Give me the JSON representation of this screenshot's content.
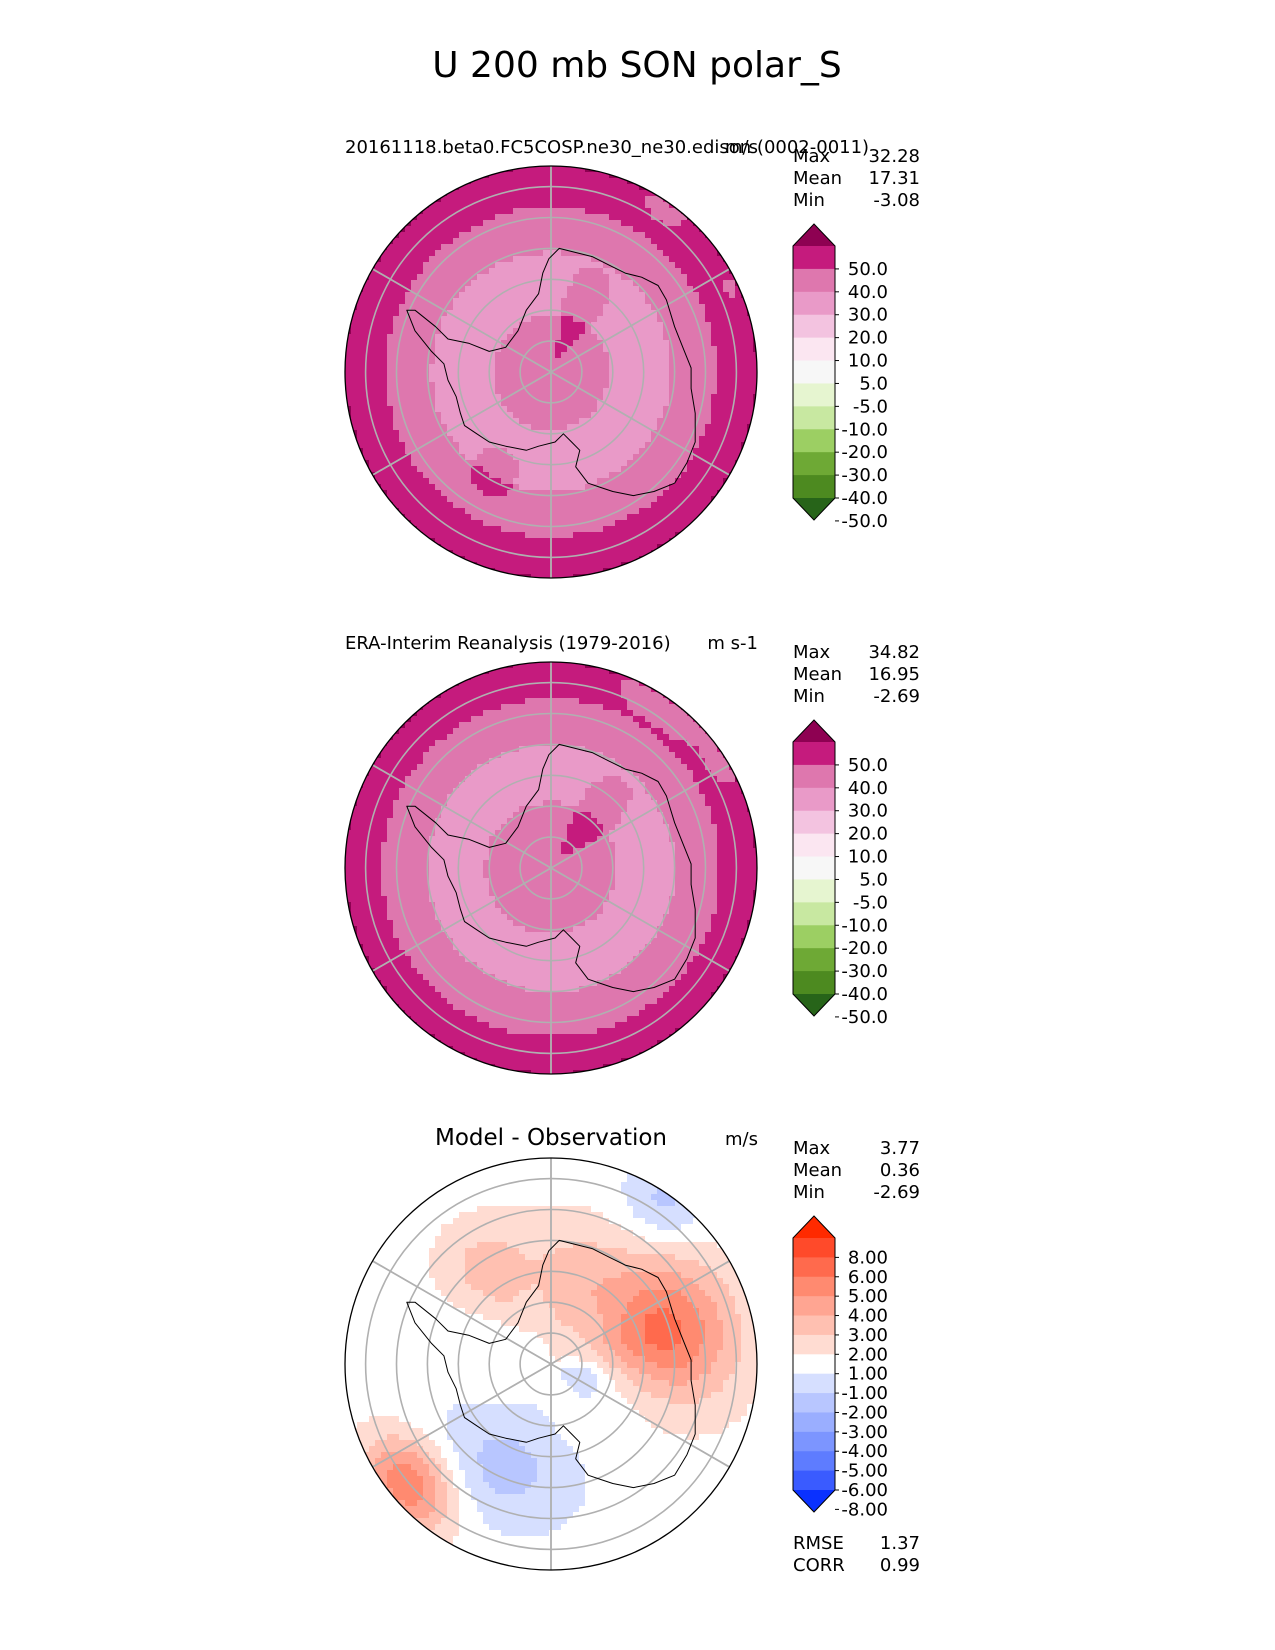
{
  "figure": {
    "title": "U 200 mb SON polar_S"
  },
  "chart_data": [
    {
      "type": "heatmap",
      "panel": "test",
      "title": "20161118.beta0.FC5COSP.ne30_ne30.edison (0002-0011)",
      "units": "m/s",
      "stats": [
        {
          "label": "Max",
          "value": "32.28"
        },
        {
          "label": "Mean",
          "value": "17.31"
        },
        {
          "label": "Min",
          "value": "-3.08"
        }
      ],
      "colorbar": {
        "levels": [
          "50.0",
          "40.0",
          "30.0",
          "20.0",
          "10.0",
          "5.0",
          "-5.0",
          "-10.0",
          "-20.0",
          "-30.0",
          "-40.0",
          "-50.0"
        ],
        "colors": [
          "#8e0152",
          "#c51b7d",
          "#de77ae",
          "#e99ac8",
          "#f3c3e0",
          "#fbe6f1",
          "#f7f7f7",
          "#e6f5d0",
          "#c8e8a1",
          "#9ccf63",
          "#6ea935",
          "#4d8a20",
          "#276419"
        ]
      },
      "field": {
        "center_band": 2,
        "rings": [
          [
            0.28,
            1
          ],
          [
            0.58,
            0
          ],
          [
            0.8,
            -1
          ],
          [
            1.0,
            -2
          ]
        ],
        "anomalies": [
          {
            "az": 25,
            "r": 0.3,
            "sa": 0.28,
            "sr": 0.26,
            "amp": 0.8
          },
          {
            "az": 210,
            "r": 0.55,
            "sa": 0.35,
            "sr": 0.2,
            "amp": 0.6
          },
          {
            "az": 140,
            "r": 0.3,
            "sa": 0.3,
            "sr": 0.2,
            "amp": -0.4
          },
          {
            "az": 35,
            "r": 0.97,
            "sa": 0.12,
            "sr": 0.08,
            "amp": -0.8
          },
          {
            "az": 65,
            "r": 0.96,
            "sa": 0.07,
            "sr": 0.06,
            "amp": -0.6
          }
        ]
      }
    },
    {
      "type": "heatmap",
      "panel": "reference",
      "title": "ERA-Interim Reanalysis (1979-2016)",
      "units": "m s-1",
      "stats": [
        {
          "label": "Max",
          "value": "34.82"
        },
        {
          "label": "Mean",
          "value": "16.95"
        },
        {
          "label": "Min",
          "value": "-2.69"
        }
      ],
      "colorbar": {
        "levels": [
          "50.0",
          "40.0",
          "30.0",
          "20.0",
          "10.0",
          "5.0",
          "-5.0",
          "-10.0",
          "-20.0",
          "-30.0",
          "-40.0",
          "-50.0"
        ],
        "colors": [
          "#8e0152",
          "#c51b7d",
          "#de77ae",
          "#e99ac8",
          "#f3c3e0",
          "#fbe6f1",
          "#f7f7f7",
          "#e6f5d0",
          "#c8e8a1",
          "#9ccf63",
          "#6ea935",
          "#4d8a20",
          "#276419"
        ]
      },
      "field": {
        "center_band": 2,
        "rings": [
          [
            0.32,
            1
          ],
          [
            0.6,
            0
          ],
          [
            0.82,
            -1
          ],
          [
            1.0,
            -2
          ]
        ],
        "anomalies": [
          {
            "az": 40,
            "r": 0.3,
            "sa": 0.3,
            "sr": 0.26,
            "amp": 0.8
          },
          {
            "az": 210,
            "r": 0.5,
            "sa": 0.3,
            "sr": 0.2,
            "amp": 0.5
          },
          {
            "az": 35,
            "r": 0.95,
            "sa": 0.22,
            "sr": 0.1,
            "amp": -1.0
          },
          {
            "az": 60,
            "r": 0.97,
            "sa": 0.1,
            "sr": 0.06,
            "amp": -0.7
          }
        ]
      }
    },
    {
      "type": "heatmap",
      "panel": "difference",
      "title": "Model - Observation",
      "units": "m/s",
      "stats": [
        {
          "label": "Max",
          "value": "3.77"
        },
        {
          "label": "Mean",
          "value": "0.36"
        },
        {
          "label": "Min",
          "value": "-2.69"
        }
      ],
      "metrics": [
        {
          "label": "RMSE",
          "value": "1.37"
        },
        {
          "label": "CORR",
          "value": "0.99"
        }
      ],
      "colorbar": {
        "levels": [
          "8.00",
          "6.00",
          "5.00",
          "4.00",
          "3.00",
          "2.00",
          "1.00",
          "-1.00",
          "-2.00",
          "-3.00",
          "-4.00",
          "-5.00",
          "-6.00",
          "-8.00"
        ],
        "colors": [
          "#ff2a00",
          "#ff4a2a",
          "#ff6a4d",
          "#ff8a70",
          "#ffa592",
          "#ffc0b1",
          "#ffdcd2",
          "#ffffff",
          "#d6dfff",
          "#b8c6ff",
          "#9aaeff",
          "#7c95ff",
          "#5e7cff",
          "#3a5bff",
          "#0a31ff"
        ]
      },
      "field": {
        "center_band": 7,
        "rings": [],
        "anomalies": [
          {
            "az": 75,
            "r": 0.58,
            "sa": 0.38,
            "sr": 0.24,
            "amp": 4.6
          },
          {
            "az": 20,
            "r": 0.4,
            "sa": 0.5,
            "sr": 0.22,
            "amp": 2.2
          },
          {
            "az": 230,
            "r": 0.9,
            "sa": 0.2,
            "sr": 0.14,
            "amp": 4.5
          },
          {
            "az": 205,
            "r": 0.55,
            "sa": 0.45,
            "sr": 0.2,
            "amp": -1.9
          },
          {
            "az": 35,
            "r": 0.95,
            "sa": 0.16,
            "sr": 0.14,
            "amp": -1.9
          },
          {
            "az": 110,
            "r": 0.15,
            "sa": 0.35,
            "sr": 0.1,
            "amp": -1.4
          },
          {
            "az": 325,
            "r": 0.55,
            "sa": 0.25,
            "sr": 0.18,
            "amp": 1.8
          }
        ]
      }
    }
  ]
}
